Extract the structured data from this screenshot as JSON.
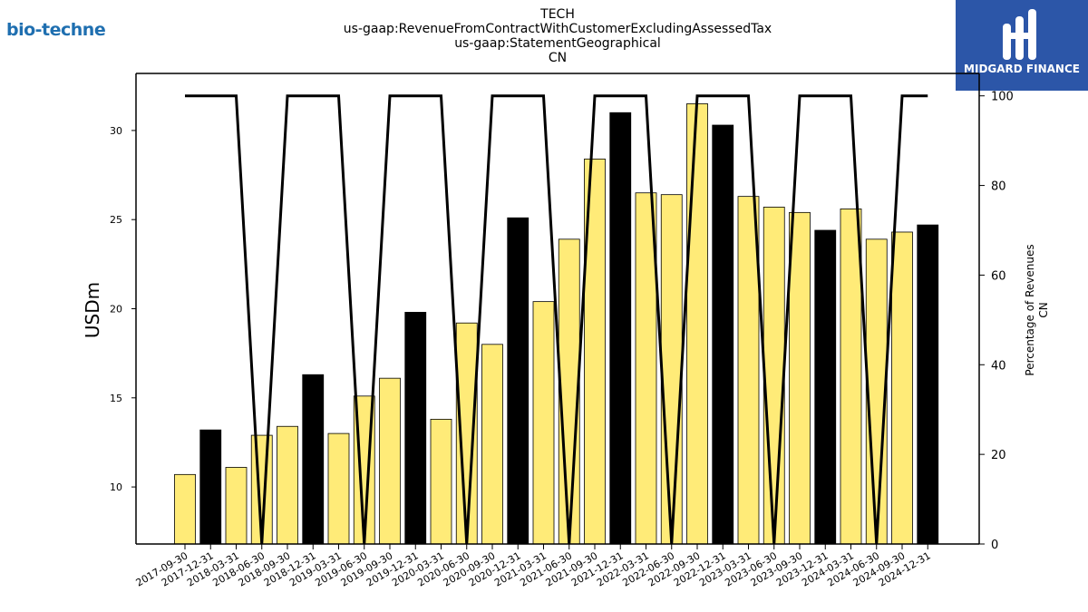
{
  "branding": {
    "company_logo_text": "bio-techne",
    "brand_name": "MIDGARD FINANCE",
    "brand_color": "#2c56a8",
    "company_color": "#1f6fb0"
  },
  "chart_data": {
    "type": "bar",
    "title_lines": [
      "TECH",
      "us-gaap:RevenueFromContractWithCustomerExcludingAssessedTax",
      "us-gaap:StatementGeographical",
      "CN"
    ],
    "ylabel": "USDm",
    "ylabel_right": [
      "Percentage of Revenues",
      "CN"
    ],
    "ylim": [
      6.8,
      33.2
    ],
    "yticks": [
      10,
      15,
      20,
      25,
      30
    ],
    "ylim_right": [
      0,
      105
    ],
    "yticks_right": [
      0,
      20,
      40,
      60,
      80,
      100
    ],
    "bar_colors": {
      "quarter": "#ffeb78",
      "fiscal_year_end": "#000000"
    },
    "categories": [
      "2017-09-30",
      "2017-12-31",
      "2018-03-31",
      "2018-06-30",
      "2018-09-30",
      "2018-12-31",
      "2019-03-31",
      "2019-06-30",
      "2019-09-30",
      "2019-12-31",
      "2020-03-31",
      "2020-06-30",
      "2020-09-30",
      "2020-12-31",
      "2021-03-31",
      "2021-06-30",
      "2021-09-30",
      "2021-12-31",
      "2022-03-31",
      "2022-06-30",
      "2022-09-30",
      "2022-12-31",
      "2023-03-31",
      "2023-06-30",
      "2023-09-30",
      "2023-12-31",
      "2024-03-31",
      "2024-06-30",
      "2024-09-30",
      "2024-12-31"
    ],
    "series": [
      {
        "values": [
          10.7,
          13.2,
          11.1,
          12.9,
          13.4,
          16.3,
          13.0,
          15.1,
          16.1,
          19.8,
          13.8,
          19.2,
          18.0,
          25.1,
          20.4,
          23.9,
          28.4,
          31.0,
          26.5,
          26.4,
          31.5,
          30.3,
          26.3,
          25.7,
          25.4,
          24.4,
          25.6,
          23.9,
          24.3,
          24.7
        ],
        "highlight": [
          false,
          true,
          false,
          false,
          false,
          true,
          false,
          false,
          false,
          true,
          false,
          false,
          false,
          true,
          false,
          false,
          false,
          true,
          false,
          false,
          false,
          true,
          false,
          false,
          false,
          true,
          false,
          false,
          false,
          true
        ]
      },
      {
        "axis": "right",
        "type": "line",
        "color": "#000000",
        "values": [
          100,
          100,
          100,
          0,
          100,
          100,
          100,
          0,
          100,
          100,
          100,
          0,
          100,
          100,
          100,
          0,
          100,
          100,
          100,
          0,
          100,
          100,
          100,
          0,
          100,
          100,
          100,
          0,
          100,
          100
        ]
      }
    ]
  }
}
